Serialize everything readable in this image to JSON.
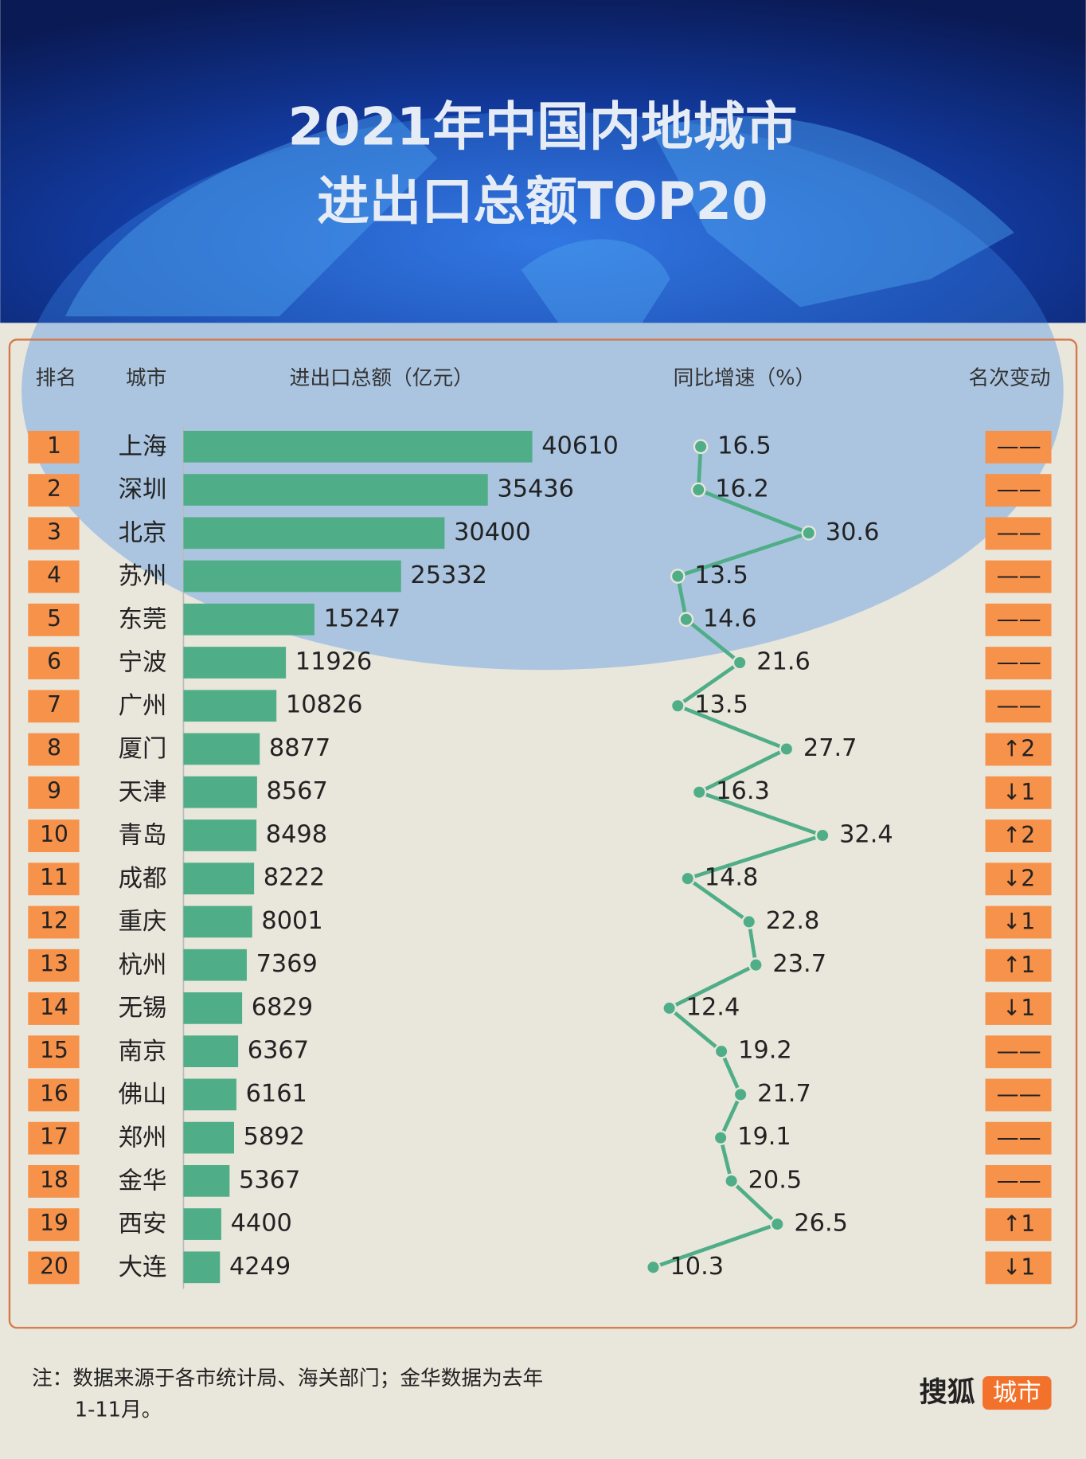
{
  "title": [
    "2021年中国内地城市",
    "进出口总额TOP20"
  ],
  "chart_data": [
    {
      "type": "bar",
      "headers": {
        "rank": "排名",
        "city": "城市",
        "value": "进出口总额（亿元）",
        "change": "名次变动"
      },
      "ranks": [
        1,
        2,
        3,
        4,
        5,
        6,
        7,
        8,
        9,
        10,
        11,
        12,
        13,
        14,
        15,
        16,
        17,
        18,
        19,
        20
      ],
      "categories": [
        "上海",
        "深圳",
        "北京",
        "苏州",
        "东莞",
        "宁波",
        "广州",
        "厦门",
        "天津",
        "青岛",
        "成都",
        "重庆",
        "杭州",
        "无锡",
        "南京",
        "佛山",
        "郑州",
        "金华",
        "西安",
        "大连"
      ],
      "values": [
        40610,
        35436,
        30400,
        25332,
        15247,
        11926,
        10826,
        8877,
        8567,
        8498,
        8222,
        8001,
        7369,
        6829,
        6367,
        6161,
        5892,
        5367,
        4400,
        4249
      ],
      "rank_changes": [
        "——",
        "——",
        "——",
        "——",
        "——",
        "——",
        "——",
        "↑2",
        "↓1",
        "↑2",
        "↓2",
        "↓1",
        "↑1",
        "↓1",
        "——",
        "——",
        "——",
        "——",
        "↑1",
        "↓1"
      ],
      "color": "#4fae87"
    },
    {
      "type": "line",
      "header": "同比增速（%）",
      "values": [
        16.5,
        16.2,
        30.6,
        13.5,
        14.6,
        21.6,
        13.5,
        27.7,
        16.3,
        32.4,
        14.8,
        22.8,
        23.7,
        12.4,
        19.2,
        21.7,
        19.1,
        20.5,
        26.5,
        10.3
      ],
      "color": "#4fae87"
    }
  ],
  "note": [
    "注：数据来源于各市统计局、海关部门；金华数据为去年",
    "1-11月。"
  ],
  "logo": {
    "brand": "搜狐",
    "channel": "城市"
  }
}
